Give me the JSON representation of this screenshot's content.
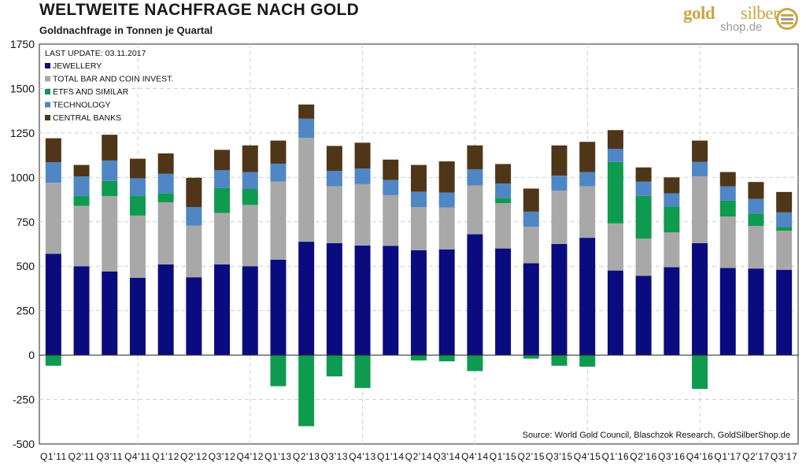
{
  "header": {
    "title": "WELTWEITE NACHFRAGE NACH GOLD",
    "subtitle": "Goldnachfrage in Tonnen je Quartal"
  },
  "logo": {
    "part1": "gold",
    "part2": "silber",
    "part3": "shop.de"
  },
  "colors": {
    "jewellery": "#0b0b80",
    "bar_coin": "#a8a8a8",
    "etfs": "#0e9a4f",
    "technology": "#4f86c6",
    "central_banks": "#503618",
    "grid": "#cfcfcf",
    "logo_gold": "#c9a646"
  },
  "chart_data": {
    "type": "bar",
    "stacked": true,
    "title": "WELTWEITE NACHFRAGE NACH GOLD",
    "subtitle": "Goldnachfrage in Tonnen je Quartal",
    "last_update": "LAST UPDATE: 03.11.2017",
    "source": "Source: World Gold Council, Blaschzok Research, GoldSilberShop.de",
    "ylim": [
      -500,
      1750
    ],
    "yticks": [
      1750,
      1500,
      1250,
      1000,
      750,
      500,
      250,
      0,
      -250,
      -500
    ],
    "ytick_labels": [
      "1750",
      "1500",
      "1250",
      "1000",
      "750",
      "500",
      "250",
      "0",
      "-250",
      "-500"
    ],
    "legend_position": "top-left",
    "categories": [
      "Q1'11",
      "Q2'11",
      "Q3'11",
      "Q4'11",
      "Q1'12",
      "Q2'12",
      "Q3'12",
      "Q4'12",
      "Q1'13",
      "Q2'13",
      "Q3'13",
      "Q4'13",
      "Q1'14",
      "Q2'14",
      "Q3'14",
      "Q4'14",
      "Q1'15",
      "Q2'15",
      "Q3'15",
      "Q4'15",
      "Q1'16",
      "Q2'16",
      "Q3'16",
      "Q4'16",
      "Q1'17",
      "Q2'17",
      "Q3'17"
    ],
    "series": [
      {
        "name": "JEWELLERY",
        "key": "jewellery",
        "values": [
          570,
          500,
          470,
          435,
          510,
          438,
          510,
          500,
          537,
          638,
          630,
          617,
          615,
          590,
          595,
          680,
          600,
          517,
          625,
          660,
          476,
          446,
          495,
          630,
          490,
          487,
          480
        ]
      },
      {
        "name": "TOTAL BAR AND COIN INVEST.",
        "key": "bar_coin",
        "values": [
          400,
          340,
          425,
          350,
          350,
          290,
          290,
          345,
          440,
          585,
          320,
          345,
          285,
          243,
          235,
          275,
          255,
          205,
          300,
          290,
          265,
          210,
          195,
          375,
          290,
          240,
          220
        ]
      },
      {
        "name": "ETFS AND SIMILAR",
        "key": "etfs",
        "values": [
          -60,
          55,
          85,
          110,
          50,
          0,
          140,
          90,
          -175,
          -400,
          -120,
          -185,
          0,
          -30,
          -35,
          -90,
          30,
          -20,
          -60,
          -65,
          345,
          240,
          145,
          -190,
          90,
          70,
          20
        ]
      },
      {
        "name": "TECHNOLOGY",
        "key": "technology",
        "values": [
          115,
          110,
          115,
          100,
          110,
          105,
          100,
          95,
          100,
          107,
          87,
          88,
          85,
          87,
          85,
          90,
          80,
          85,
          85,
          80,
          75,
          80,
          75,
          82,
          80,
          82,
          83
        ]
      },
      {
        "name": "CENTRAL BANKS",
        "key": "central_banks",
        "values": [
          135,
          65,
          145,
          110,
          115,
          165,
          115,
          150,
          130,
          80,
          140,
          145,
          115,
          150,
          175,
          135,
          110,
          130,
          170,
          170,
          105,
          80,
          90,
          120,
          80,
          95,
          115
        ]
      }
    ]
  }
}
